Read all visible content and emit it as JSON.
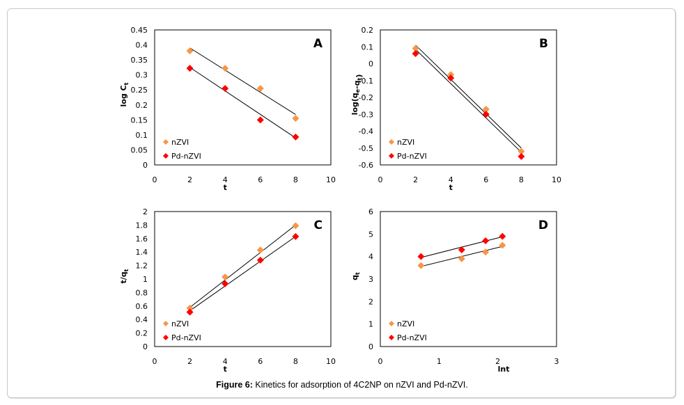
{
  "caption": {
    "label": "Figure 6:",
    "text": " Kinetics for adsorption of 4C2NP on nZVI and Pd-nZVI."
  },
  "colors": {
    "nZVI": "#F79646",
    "Pd-nZVI": "#FF0000",
    "trendline": "#000000"
  },
  "chart_data": [
    {
      "panel": "A",
      "type": "scatter",
      "title": "",
      "xlabel": "t",
      "ylabel": "log Ct",
      "ylabel_main": "log C",
      "ylabel_sub": "t",
      "xlim": [
        0,
        10
      ],
      "ylim": [
        0,
        0.45
      ],
      "xticks": [
        0,
        2,
        4,
        6,
        8,
        10
      ],
      "yticks": [
        0,
        0.05,
        0.1,
        0.15,
        0.2,
        0.25,
        0.3,
        0.35,
        0.4,
        0.45
      ],
      "ytick_labels": [
        "0",
        "0.05",
        "0.1",
        "0.15",
        "0.2",
        "0.25",
        "0.3",
        "0.35",
        "0.4",
        "0.45"
      ],
      "grid": false,
      "legend_position": "bottom-left",
      "series": [
        {
          "name": "nZVI",
          "x": [
            2,
            4,
            6,
            8
          ],
          "y": [
            0.38,
            0.322,
            0.255,
            0.155
          ],
          "trendline": [
            [
              2,
              0.39
            ],
            [
              8,
              0.168
            ]
          ]
        },
        {
          "name": "Pd-nZVI",
          "x": [
            2,
            4,
            6,
            8
          ],
          "y": [
            0.322,
            0.255,
            0.15,
            0.093
          ],
          "trendline": [
            [
              2,
              0.325
            ],
            [
              8,
              0.09
            ]
          ]
        }
      ]
    },
    {
      "panel": "B",
      "type": "scatter",
      "title": "",
      "xlabel": "t",
      "ylabel": "log(qe-qt)",
      "ylabel_parts": [
        [
          "log(q",
          ""
        ],
        [
          "e",
          "sub"
        ],
        [
          "-q",
          ""
        ],
        [
          "t",
          "sub"
        ],
        [
          ")",
          ""
        ]
      ],
      "xlim": [
        0,
        10
      ],
      "ylim": [
        -0.6,
        0.2
      ],
      "xticks": [
        0,
        2,
        4,
        6,
        8,
        10
      ],
      "yticks": [
        -0.6,
        -0.5,
        -0.4,
        -0.3,
        -0.2,
        -0.1,
        0,
        0.1,
        0.2
      ],
      "ytick_labels": [
        "-0.6",
        "-0.5",
        "-0.4",
        "-0.3",
        "-0.2",
        "-0.1",
        "0",
        "0.1",
        "0.2"
      ],
      "grid": false,
      "legend_position": "bottom-left",
      "series": [
        {
          "name": "nZVI",
          "x": [
            2,
            4,
            6,
            8
          ],
          "y": [
            0.09,
            -0.065,
            -0.27,
            -0.52
          ],
          "trendline": [
            [
              2,
              0.11
            ],
            [
              8,
              -0.5
            ]
          ]
        },
        {
          "name": "Pd-nZVI",
          "x": [
            2,
            4,
            6,
            8
          ],
          "y": [
            0.06,
            -0.085,
            -0.3,
            -0.55
          ],
          "trendline": [
            [
              2,
              0.085
            ],
            [
              8,
              -0.525
            ]
          ]
        }
      ]
    },
    {
      "panel": "C",
      "type": "scatter",
      "title": "",
      "xlabel": "t",
      "ylabel": "t/qt",
      "ylabel_main": "t/q",
      "ylabel_sub": "t",
      "xlim": [
        0,
        10
      ],
      "ylim": [
        0,
        2
      ],
      "xticks": [
        0,
        2,
        4,
        6,
        8,
        10
      ],
      "yticks": [
        0,
        0.2,
        0.4,
        0.6,
        0.8,
        1,
        1.2,
        1.4,
        1.6,
        1.8,
        2
      ],
      "ytick_labels": [
        "0",
        "0.2",
        "0.4",
        "0.6",
        "0.8",
        "1",
        "1.2",
        "1.4",
        "1.6",
        "1.8",
        "2"
      ],
      "grid": false,
      "legend_position": "bottom-left",
      "series": [
        {
          "name": "nZVI",
          "x": [
            2,
            4,
            6,
            8
          ],
          "y": [
            0.57,
            1.03,
            1.43,
            1.79
          ],
          "trendline": [
            [
              2,
              0.58
            ],
            [
              8,
              1.8
            ]
          ]
        },
        {
          "name": "Pd-nZVI",
          "x": [
            2,
            4,
            6,
            8
          ],
          "y": [
            0.51,
            0.93,
            1.28,
            1.63
          ],
          "trendline": [
            [
              2,
              0.53
            ],
            [
              8,
              1.63
            ]
          ]
        }
      ]
    },
    {
      "panel": "D",
      "type": "scatter",
      "title": "",
      "xlabel": "lnt",
      "ylabel": "qt",
      "ylabel_main": "q",
      "ylabel_sub": "t",
      "xlim": [
        0,
        3
      ],
      "ylim": [
        0,
        6
      ],
      "xticks": [
        0,
        1,
        2,
        3
      ],
      "yticks": [
        0,
        1,
        2,
        3,
        4,
        5,
        6
      ],
      "ytick_labels": [
        "0",
        "1",
        "2",
        "3",
        "4",
        "5",
        "6"
      ],
      "grid": false,
      "legend_position": "bottom-left",
      "series": [
        {
          "name": "nZVI",
          "x": [
            0.693,
            1.386,
            1.792,
            2.079
          ],
          "y": [
            3.6,
            3.9,
            4.2,
            4.5
          ],
          "trendline": [
            [
              0.693,
              3.56
            ],
            [
              2.079,
              4.45
            ]
          ]
        },
        {
          "name": "Pd-nZVI",
          "x": [
            0.693,
            1.386,
            1.792,
            2.079
          ],
          "y": [
            4.0,
            4.3,
            4.7,
            4.9
          ],
          "trendline": [
            [
              0.693,
              3.96
            ],
            [
              2.079,
              4.88
            ]
          ]
        }
      ]
    }
  ]
}
